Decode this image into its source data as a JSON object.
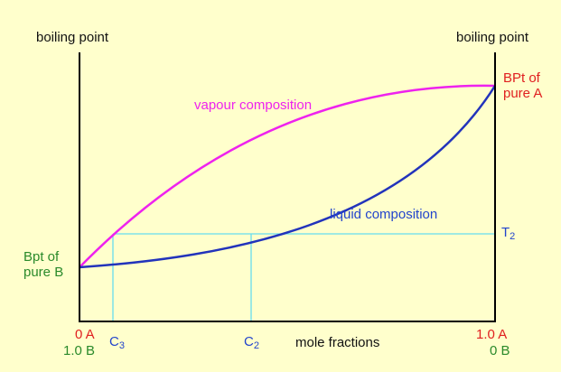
{
  "colors": {
    "background": "#ffffcc",
    "axis": "#000000",
    "vapour": "#ee22ee",
    "liquid": "#2233bb",
    "guide": "#66ddee",
    "pure_a_text": "#e02020",
    "pure_b_text": "#2a8a2a",
    "c_labels": "#2244cc"
  },
  "axes": {
    "left_title": "boiling point",
    "right_title": "boiling point",
    "x_title": "mole fractions"
  },
  "curves": {
    "vapour_label": "vapour composition",
    "liquid_label": "liquid composition"
  },
  "endpoints": {
    "bpt_a_line1": "BPt of",
    "bpt_a_line2": "pure A",
    "bpt_b_line1": "Bpt of",
    "bpt_b_line2": "pure B"
  },
  "ticks": {
    "left_a": "0 A",
    "left_b": "1.0 B",
    "right_a": "1.0 A",
    "right_b": "0 B",
    "c3_letter": "C",
    "c3_sub": "3",
    "c2_letter": "C",
    "c2_sub": "2",
    "t2_letter": "T",
    "t2_sub": "2"
  }
}
